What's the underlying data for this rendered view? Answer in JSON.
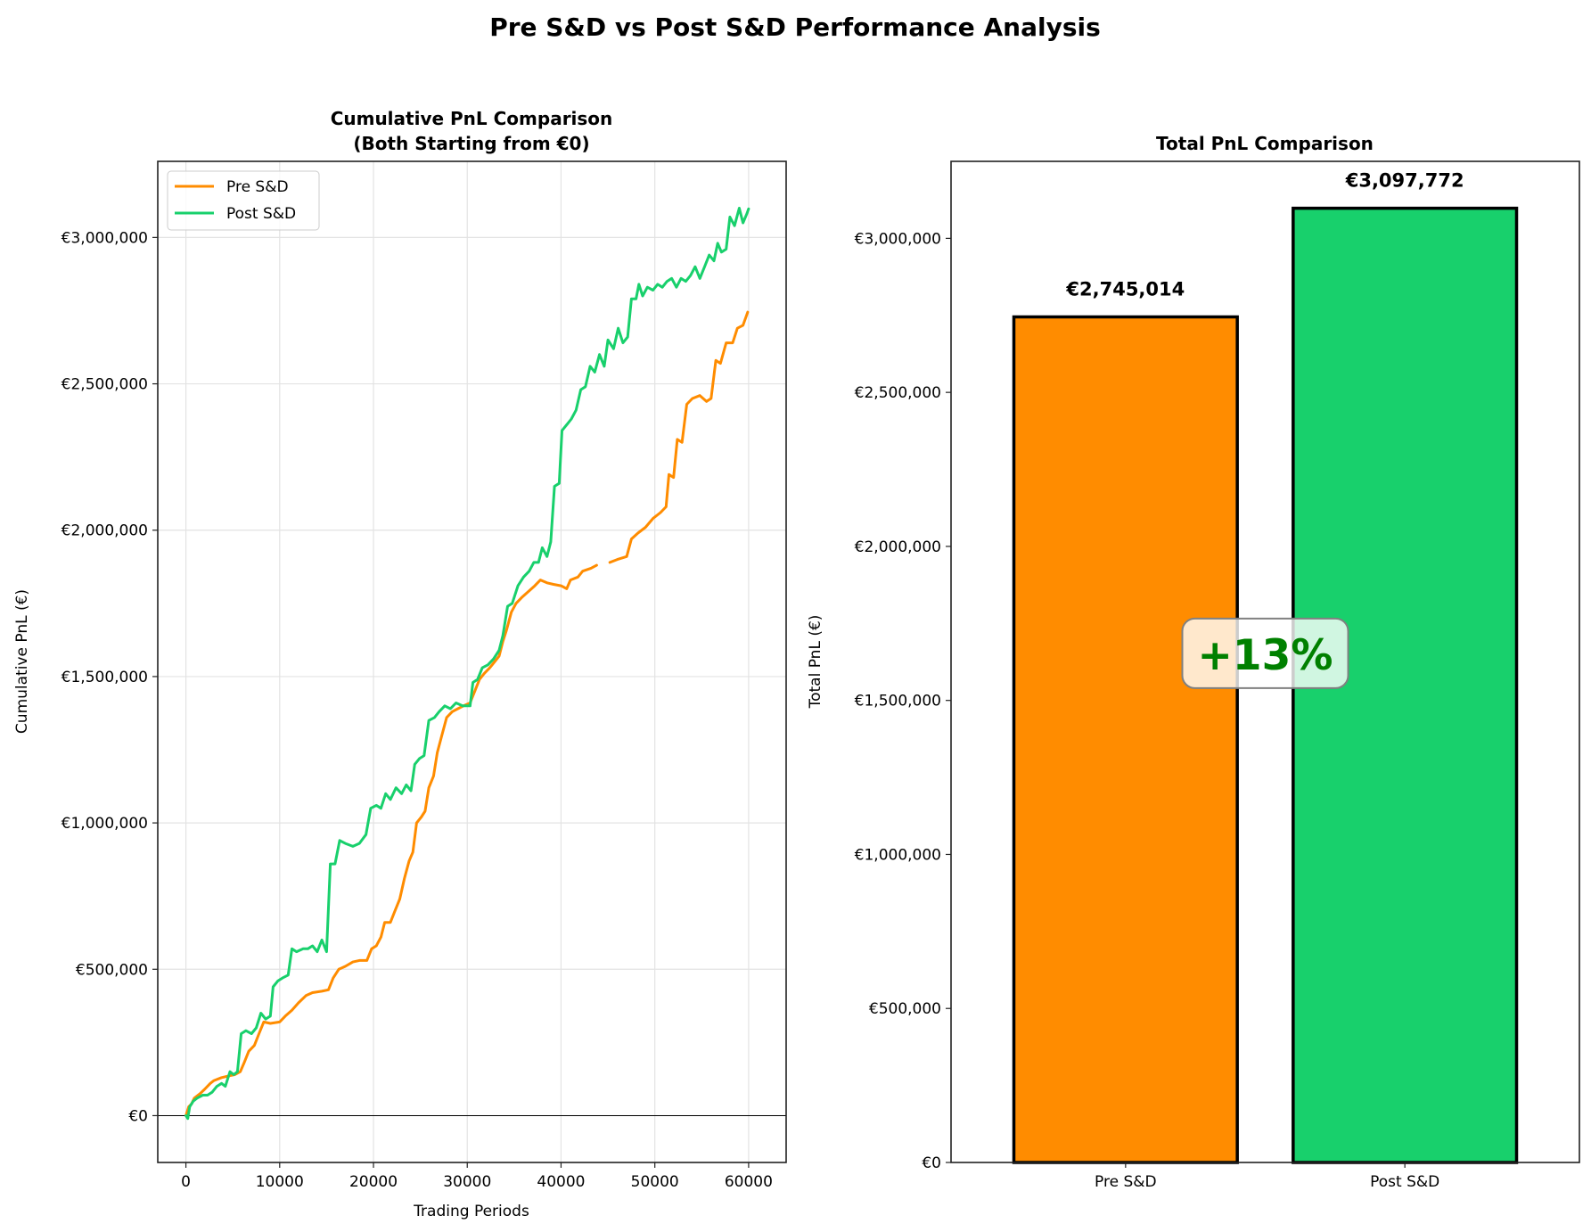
{
  "figure": {
    "suptitle": "Pre S&D vs Post S&D Performance Analysis"
  },
  "colors": {
    "pre": "#ff8c00",
    "post": "#18d06c",
    "annotation_text": "#008000"
  },
  "chart_data": [
    {
      "type": "line",
      "title_line1": "Cumulative PnL Comparison",
      "title_line2": "(Both Starting from €0)",
      "xlabel": "Trading Periods",
      "ylabel": "Cumulative PnL (€)",
      "xlim": [
        -3000,
        64000
      ],
      "ylim": [
        -160000,
        3260000
      ],
      "grid": true,
      "legend_position": "top-left",
      "xticks": [
        0,
        10000,
        20000,
        30000,
        40000,
        50000,
        60000
      ],
      "xtick_labels": [
        "0",
        "10000",
        "20000",
        "30000",
        "40000",
        "50000",
        "60000"
      ],
      "yticks": [
        0,
        500000,
        1000000,
        1500000,
        2000000,
        2500000,
        3000000
      ],
      "ytick_labels": [
        "€0",
        "€500,000",
        "€1,000,000",
        "€1,500,000",
        "€2,000,000",
        "€2,500,000",
        "€3,000,000"
      ],
      "zero_line": true,
      "series": [
        {
          "name": "Pre S&D",
          "color": "#ff8c00",
          "gaps": [
            [
              44000,
              45200
            ]
          ],
          "points": [
            [
              0,
              0
            ],
            [
              300,
              30000
            ],
            [
              600,
              40000
            ],
            [
              900,
              60000
            ],
            [
              1500,
              75000
            ],
            [
              2000,
              90000
            ],
            [
              2600,
              110000
            ],
            [
              3000,
              120000
            ],
            [
              3800,
              130000
            ],
            [
              4500,
              135000
            ],
            [
              5200,
              140000
            ],
            [
              5800,
              150000
            ],
            [
              6200,
              180000
            ],
            [
              6700,
              220000
            ],
            [
              7300,
              240000
            ],
            [
              7800,
              280000
            ],
            [
              8300,
              320000
            ],
            [
              9000,
              315000
            ],
            [
              10000,
              320000
            ],
            [
              10600,
              340000
            ],
            [
              11300,
              360000
            ],
            [
              12000,
              385000
            ],
            [
              12800,
              410000
            ],
            [
              13500,
              420000
            ],
            [
              14500,
              425000
            ],
            [
              15200,
              430000
            ],
            [
              15700,
              470000
            ],
            [
              16300,
              500000
            ],
            [
              17000,
              510000
            ],
            [
              17800,
              525000
            ],
            [
              18500,
              530000
            ],
            [
              19300,
              530000
            ],
            [
              19800,
              570000
            ],
            [
              20300,
              580000
            ],
            [
              20800,
              610000
            ],
            [
              21200,
              660000
            ],
            [
              21800,
              660000
            ],
            [
              22300,
              700000
            ],
            [
              22800,
              740000
            ],
            [
              23300,
              810000
            ],
            [
              23800,
              870000
            ],
            [
              24200,
              900000
            ],
            [
              24600,
              1000000
            ],
            [
              25100,
              1020000
            ],
            [
              25500,
              1040000
            ],
            [
              25900,
              1120000
            ],
            [
              26400,
              1160000
            ],
            [
              26800,
              1240000
            ],
            [
              27300,
              1300000
            ],
            [
              27800,
              1360000
            ],
            [
              28400,
              1380000
            ],
            [
              29000,
              1390000
            ],
            [
              29600,
              1400000
            ],
            [
              30300,
              1410000
            ],
            [
              30800,
              1450000
            ],
            [
              31300,
              1490000
            ],
            [
              31800,
              1510000
            ],
            [
              32400,
              1530000
            ],
            [
              32900,
              1550000
            ],
            [
              33400,
              1570000
            ],
            [
              33800,
              1620000
            ],
            [
              34200,
              1660000
            ],
            [
              34700,
              1720000
            ],
            [
              35200,
              1750000
            ],
            [
              35800,
              1770000
            ],
            [
              36500,
              1790000
            ],
            [
              37200,
              1810000
            ],
            [
              37800,
              1830000
            ],
            [
              38500,
              1820000
            ],
            [
              39200,
              1815000
            ],
            [
              40000,
              1810000
            ],
            [
              40600,
              1800000
            ],
            [
              41000,
              1830000
            ],
            [
              41800,
              1840000
            ],
            [
              42300,
              1860000
            ],
            [
              43200,
              1870000
            ],
            [
              43800,
              1880000
            ],
            [
              45200,
              1890000
            ],
            [
              46000,
              1900000
            ],
            [
              47000,
              1910000
            ],
            [
              47500,
              1970000
            ],
            [
              48200,
              1990000
            ],
            [
              49000,
              2010000
            ],
            [
              49800,
              2040000
            ],
            [
              50600,
              2060000
            ],
            [
              51200,
              2080000
            ],
            [
              51500,
              2190000
            ],
            [
              52000,
              2180000
            ],
            [
              52400,
              2310000
            ],
            [
              52900,
              2300000
            ],
            [
              53400,
              2430000
            ],
            [
              54000,
              2450000
            ],
            [
              54800,
              2460000
            ],
            [
              55500,
              2440000
            ],
            [
              56000,
              2450000
            ],
            [
              56500,
              2580000
            ],
            [
              57000,
              2570000
            ],
            [
              57600,
              2640000
            ],
            [
              58300,
              2640000
            ],
            [
              58800,
              2690000
            ],
            [
              59400,
              2700000
            ],
            [
              59900,
              2745014
            ]
          ]
        },
        {
          "name": "Post S&D",
          "color": "#18d06c",
          "points": [
            [
              0,
              0
            ],
            [
              200,
              -10000
            ],
            [
              400,
              30000
            ],
            [
              800,
              50000
            ],
            [
              1200,
              60000
            ],
            [
              1800,
              70000
            ],
            [
              2300,
              70000
            ],
            [
              2800,
              80000
            ],
            [
              3300,
              100000
            ],
            [
              3800,
              110000
            ],
            [
              4200,
              100000
            ],
            [
              4700,
              150000
            ],
            [
              5100,
              140000
            ],
            [
              5500,
              150000
            ],
            [
              5900,
              280000
            ],
            [
              6400,
              290000
            ],
            [
              7000,
              280000
            ],
            [
              7500,
              300000
            ],
            [
              8000,
              350000
            ],
            [
              8500,
              330000
            ],
            [
              9000,
              340000
            ],
            [
              9300,
              440000
            ],
            [
              9800,
              460000
            ],
            [
              10300,
              470000
            ],
            [
              10900,
              480000
            ],
            [
              11300,
              570000
            ],
            [
              11800,
              560000
            ],
            [
              12500,
              570000
            ],
            [
              13000,
              570000
            ],
            [
              13500,
              580000
            ],
            [
              14000,
              560000
            ],
            [
              14500,
              600000
            ],
            [
              15000,
              560000
            ],
            [
              15400,
              860000
            ],
            [
              15900,
              860000
            ],
            [
              16400,
              940000
            ],
            [
              17000,
              930000
            ],
            [
              17800,
              920000
            ],
            [
              18500,
              930000
            ],
            [
              19200,
              960000
            ],
            [
              19700,
              1050000
            ],
            [
              20300,
              1060000
            ],
            [
              20800,
              1050000
            ],
            [
              21300,
              1100000
            ],
            [
              21800,
              1080000
            ],
            [
              22400,
              1120000
            ],
            [
              23000,
              1100000
            ],
            [
              23500,
              1130000
            ],
            [
              24000,
              1110000
            ],
            [
              24400,
              1200000
            ],
            [
              24900,
              1220000
            ],
            [
              25400,
              1230000
            ],
            [
              25900,
              1350000
            ],
            [
              26500,
              1360000
            ],
            [
              27000,
              1380000
            ],
            [
              27600,
              1400000
            ],
            [
              28200,
              1390000
            ],
            [
              28800,
              1410000
            ],
            [
              29500,
              1400000
            ],
            [
              30300,
              1400000
            ],
            [
              30600,
              1480000
            ],
            [
              31100,
              1490000
            ],
            [
              31600,
              1530000
            ],
            [
              32200,
              1540000
            ],
            [
              32800,
              1560000
            ],
            [
              33400,
              1590000
            ],
            [
              33800,
              1640000
            ],
            [
              34300,
              1740000
            ],
            [
              34800,
              1750000
            ],
            [
              35400,
              1810000
            ],
            [
              36000,
              1840000
            ],
            [
              36600,
              1860000
            ],
            [
              37100,
              1890000
            ],
            [
              37600,
              1890000
            ],
            [
              38000,
              1940000
            ],
            [
              38500,
              1910000
            ],
            [
              38900,
              1960000
            ],
            [
              39300,
              2150000
            ],
            [
              39800,
              2160000
            ],
            [
              40100,
              2340000
            ],
            [
              40600,
              2360000
            ],
            [
              41100,
              2380000
            ],
            [
              41600,
              2410000
            ],
            [
              42100,
              2480000
            ],
            [
              42600,
              2490000
            ],
            [
              43100,
              2560000
            ],
            [
              43600,
              2540000
            ],
            [
              44100,
              2600000
            ],
            [
              44600,
              2560000
            ],
            [
              45000,
              2650000
            ],
            [
              45600,
              2620000
            ],
            [
              46100,
              2690000
            ],
            [
              46600,
              2640000
            ],
            [
              47100,
              2660000
            ],
            [
              47500,
              2790000
            ],
            [
              48000,
              2790000
            ],
            [
              48300,
              2840000
            ],
            [
              48700,
              2800000
            ],
            [
              49200,
              2830000
            ],
            [
              49800,
              2820000
            ],
            [
              50300,
              2840000
            ],
            [
              50800,
              2830000
            ],
            [
              51300,
              2850000
            ],
            [
              51800,
              2860000
            ],
            [
              52300,
              2830000
            ],
            [
              52800,
              2860000
            ],
            [
              53300,
              2850000
            ],
            [
              53800,
              2870000
            ],
            [
              54300,
              2900000
            ],
            [
              54800,
              2860000
            ],
            [
              55300,
              2900000
            ],
            [
              55800,
              2940000
            ],
            [
              56300,
              2920000
            ],
            [
              56700,
              2980000
            ],
            [
              57100,
              2950000
            ],
            [
              57600,
              2960000
            ],
            [
              58000,
              3070000
            ],
            [
              58500,
              3040000
            ],
            [
              59000,
              3100000
            ],
            [
              59400,
              3050000
            ],
            [
              59800,
              3080000
            ],
            [
              60000,
              3097772
            ]
          ]
        }
      ]
    },
    {
      "type": "bar",
      "title": "Total PnL Comparison",
      "xlabel": "",
      "ylabel": "Total PnL (€)",
      "categories": [
        "Pre S&D",
        "Post S&D"
      ],
      "values": [
        2745014,
        3097772
      ],
      "value_labels": [
        "€2,745,014",
        "€3,097,772"
      ],
      "bar_colors": [
        "#ff8c00",
        "#18d06c"
      ],
      "ylim": [
        0,
        3250000
      ],
      "yticks": [
        0,
        500000,
        1000000,
        1500000,
        2000000,
        2500000,
        3000000
      ],
      "ytick_labels": [
        "€0",
        "€500,000",
        "€1,000,000",
        "€1,500,000",
        "€2,000,000",
        "€2,500,000",
        "€3,000,000"
      ],
      "grid": false,
      "annotation": {
        "text": "+13%",
        "anchor_value": 1650000
      }
    }
  ]
}
